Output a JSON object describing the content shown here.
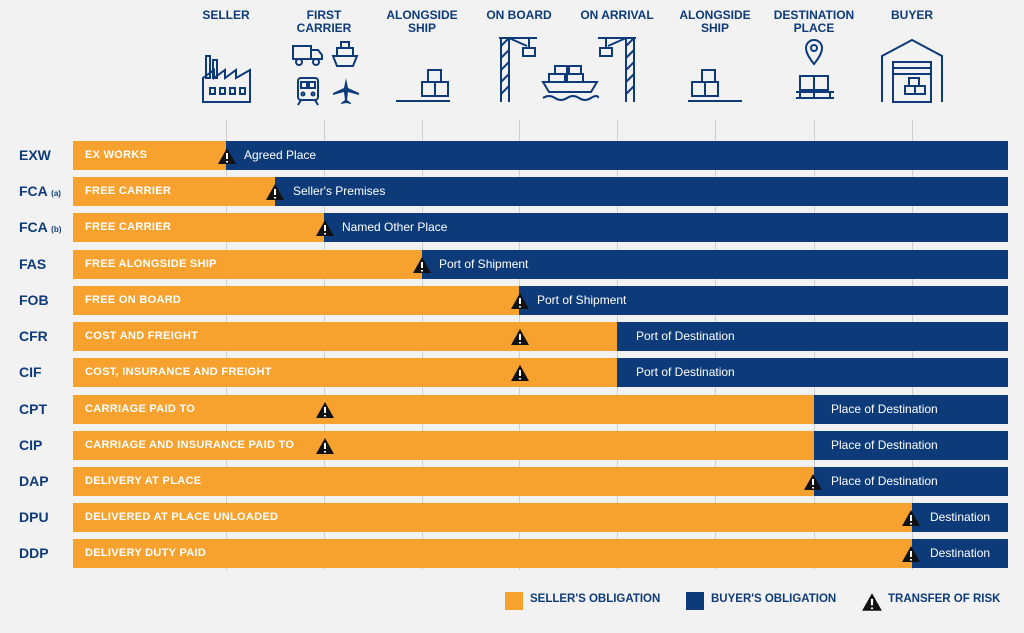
{
  "columns": {
    "seller": "SELLER",
    "first_carrier": "FIRST\nCARRIER",
    "alongside_ship_1": "ALONGSIDE\nSHIP",
    "on_board": "ON BOARD",
    "on_arrival": "ON ARRIVAL",
    "alongside_ship_2": "ALONGSIDE\nSHIP",
    "destination_place": "DESTINATION\nPLACE",
    "buyer": "BUYER"
  },
  "rows": [
    {
      "code": "EXW",
      "suffix": "",
      "seller_label": "EX WORKS",
      "buyer_label": "Agreed Place"
    },
    {
      "code": "FCA",
      "suffix": "(a)",
      "seller_label": "FREE CARRIER",
      "buyer_label": "Seller's Premises"
    },
    {
      "code": "FCA",
      "suffix": "(b)",
      "seller_label": "FREE CARRIER",
      "buyer_label": "Named Other Place"
    },
    {
      "code": "FAS",
      "suffix": "",
      "seller_label": "FREE ALONGSIDE SHIP",
      "buyer_label": "Port of Shipment"
    },
    {
      "code": "FOB",
      "suffix": "",
      "seller_label": "FREE ON BOARD",
      "buyer_label": "Port of Shipment"
    },
    {
      "code": "CFR",
      "suffix": "",
      "seller_label": "COST AND FREIGHT",
      "buyer_label": "Port of Destination"
    },
    {
      "code": "CIF",
      "suffix": "",
      "seller_label": "COST, INSURANCE AND FREIGHT",
      "buyer_label": "Port of Destination"
    },
    {
      "code": "CPT",
      "suffix": "",
      "seller_label": "CARRIAGE PAID TO",
      "buyer_label": "Place of Destination"
    },
    {
      "code": "CIP",
      "suffix": "",
      "seller_label": "CARRIAGE AND INSURANCE PAID TO",
      "buyer_label": "Place of Destination"
    },
    {
      "code": "DAP",
      "suffix": "",
      "seller_label": "DELIVERY AT PLACE",
      "buyer_label": "Place of Destination"
    },
    {
      "code": "DPU",
      "suffix": "",
      "seller_label": "DELIVERED AT PLACE UNLOADED",
      "buyer_label": "Destination"
    },
    {
      "code": "DDP",
      "suffix": "",
      "seller_label": "DELIVERY DUTY PAID",
      "buyer_label": "Destination"
    }
  ],
  "legend": {
    "seller": "SELLER'S OBLIGATION",
    "buyer": "BUYER'S OBLIGATION",
    "risk": "TRANSFER OF RISK"
  },
  "colors": {
    "seller": "#f7a22e",
    "buyer": "#0d3b7a",
    "background": "#f2f2f2"
  },
  "icons": [
    "factory-icon",
    "truck-icon",
    "ship-icon",
    "train-icon",
    "airplane-icon",
    "boxes-on-ground-icon",
    "crane-icon",
    "container-ship-icon",
    "crane-icon",
    "boxes-on-ground-icon",
    "location-pin-pallet-icon",
    "warehouse-icon",
    "warning-triangle-icon"
  ]
}
